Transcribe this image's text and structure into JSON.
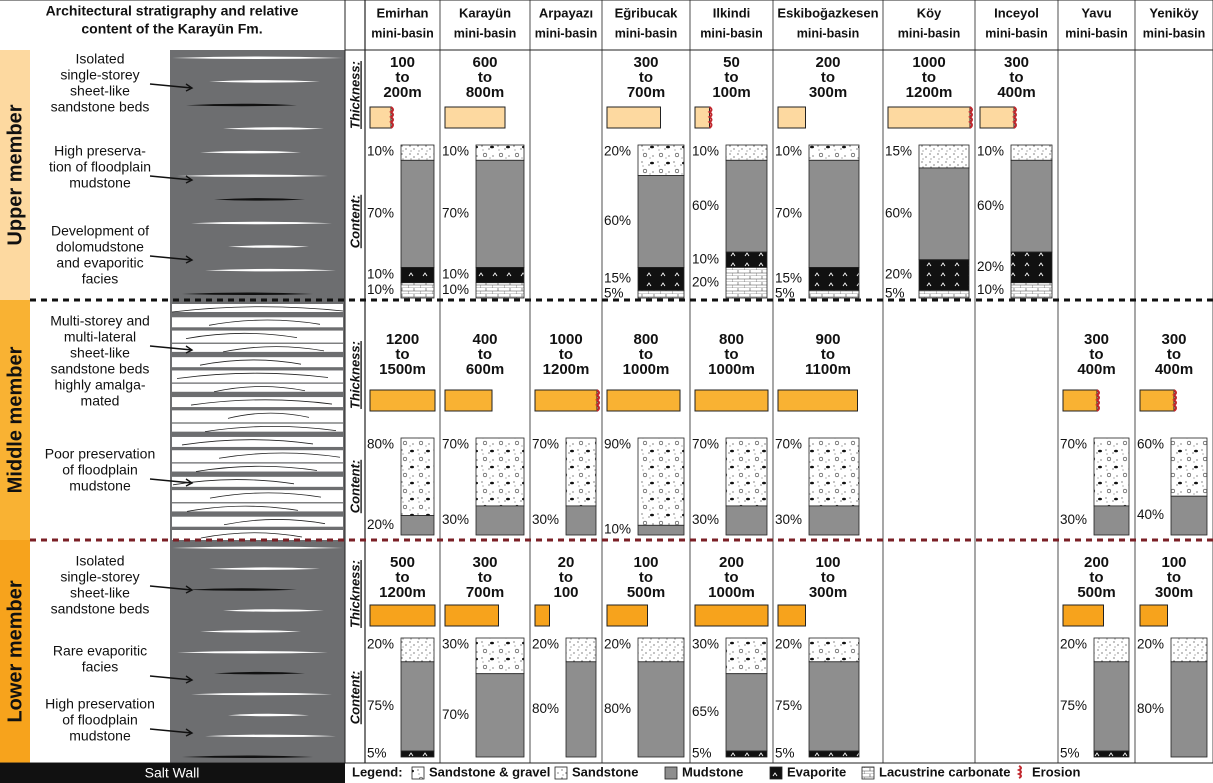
{
  "header": {
    "title": [
      "Architectural stratigraphy and relative",
      "content of the Karayün Fm."
    ],
    "basins": [
      {
        "name": "Emirhan",
        "sub": "mini-basin"
      },
      {
        "name": "Karayün",
        "sub": "mini-basin"
      },
      {
        "name": "Arpayazı",
        "sub": "mini-basin"
      },
      {
        "name": "Eğribucak",
        "sub": "mini-basin"
      },
      {
        "name": "Ilkindi",
        "sub": "mini-basin"
      },
      {
        "name": "Eskiboğazkesen",
        "sub": "mini-basin"
      },
      {
        "name": "Köy",
        "sub": "mini-basin"
      },
      {
        "name": "Inceyol",
        "sub": "mini-basin"
      },
      {
        "name": "Yavu",
        "sub": "mini-basin"
      },
      {
        "name": "Yeniköy",
        "sub": "mini-basin"
      }
    ]
  },
  "members": [
    {
      "name": "Upper member",
      "color": "#fdd9a0",
      "thickness_label": "Thickness:",
      "content_label": "Content:",
      "notes": [
        [
          "Isolated",
          "single-storey",
          "sheet-like",
          "sandstone beds"
        ],
        [
          "High preserva-",
          "tion of floodplain",
          "mudstone"
        ],
        [
          "Development of",
          "dolomudstone",
          "and evaporitic",
          "facies"
        ]
      ],
      "cells": [
        {
          "thickness": [
            "100",
            "to",
            "200m"
          ],
          "erosion": true,
          "content": [
            {
              "kind": "sandstone",
              "value": 10,
              "label": "10%"
            },
            {
              "kind": "mudstone",
              "value": 70,
              "label": "70%"
            },
            {
              "kind": "evaporite",
              "value": 10,
              "label": "10%"
            },
            {
              "kind": "carbonate",
              "value": 10,
              "label": "10%"
            }
          ]
        },
        {
          "thickness": [
            "600",
            "to",
            "800m"
          ],
          "erosion": false,
          "content": [
            {
              "kind": "gravel",
              "value": 10,
              "label": "10%"
            },
            {
              "kind": "mudstone",
              "value": 70,
              "label": "70%"
            },
            {
              "kind": "evaporite",
              "value": 10,
              "label": "10%"
            },
            {
              "kind": "carbonate",
              "value": 10,
              "label": "10%"
            }
          ]
        },
        null,
        {
          "thickness": [
            "300",
            "to",
            "700m"
          ],
          "erosion": false,
          "content": [
            {
              "kind": "gravel",
              "value": 20,
              "label": "20%"
            },
            {
              "kind": "mudstone",
              "value": 60,
              "label": "60%"
            },
            {
              "kind": "evaporite",
              "value": 15,
              "label": "15%"
            },
            {
              "kind": "carbonate",
              "value": 5,
              "label": "5%"
            }
          ]
        },
        {
          "thickness": [
            "50",
            "to",
            "100m"
          ],
          "erosion": true,
          "content": [
            {
              "kind": "sandstone",
              "value": 10,
              "label": "10%"
            },
            {
              "kind": "mudstone",
              "value": 60,
              "label": "60%"
            },
            {
              "kind": "evaporite",
              "value": 10,
              "label": "10%"
            },
            {
              "kind": "carbonate",
              "value": 20,
              "label": "20%"
            }
          ]
        },
        {
          "thickness": [
            "200",
            "to",
            "300m"
          ],
          "erosion": false,
          "content": [
            {
              "kind": "gravel",
              "value": 10,
              "label": "10%"
            },
            {
              "kind": "mudstone",
              "value": 70,
              "label": "70%"
            },
            {
              "kind": "evaporite",
              "value": 15,
              "label": "15%"
            },
            {
              "kind": "carbonate",
              "value": 5,
              "label": "5%"
            }
          ]
        },
        {
          "thickness": [
            "1000",
            "to",
            "1200m"
          ],
          "erosion": true,
          "content": [
            {
              "kind": "sandstone",
              "value": 15,
              "label": "15%"
            },
            {
              "kind": "mudstone",
              "value": 60,
              "label": "60%"
            },
            {
              "kind": "evaporite",
              "value": 20,
              "label": "20%"
            },
            {
              "kind": "carbonate",
              "value": 5,
              "label": "5%"
            }
          ]
        },
        {
          "thickness": [
            "300",
            "to",
            "400m"
          ],
          "erosion": true,
          "content": [
            {
              "kind": "sandstone",
              "value": 10,
              "label": "10%"
            },
            {
              "kind": "mudstone",
              "value": 60,
              "label": "60%"
            },
            {
              "kind": "evaporite",
              "value": 20,
              "label": "20%"
            },
            {
              "kind": "carbonate",
              "value": 10,
              "label": "10%"
            }
          ]
        },
        null,
        null
      ]
    },
    {
      "name": "Middle member",
      "color": "#f9b233",
      "thickness_label": "Thickness:",
      "content_label": "Content:",
      "notes": [
        [
          "Multi-storey and",
          "multi-lateral",
          "sheet-like",
          "sandstone beds",
          "highly amalga-",
          "mated"
        ],
        [
          "Poor preservation",
          "of floodplain",
          "mudstone"
        ]
      ],
      "cells": [
        {
          "thickness": [
            "1200",
            "to",
            "1500m"
          ],
          "erosion": false,
          "content": [
            {
              "kind": "gravel",
              "value": 80,
              "label": "80%"
            },
            {
              "kind": "mudstone",
              "value": 20,
              "label": "20%"
            }
          ]
        },
        {
          "thickness": [
            "400",
            "to",
            "600m"
          ],
          "erosion": false,
          "content": [
            {
              "kind": "gravel",
              "value": 70,
              "label": "70%"
            },
            {
              "kind": "mudstone",
              "value": 30,
              "label": "30%"
            }
          ]
        },
        {
          "thickness": [
            "1000",
            "to",
            "1200m"
          ],
          "erosion": true,
          "content": [
            {
              "kind": "gravel",
              "value": 70,
              "label": "70%"
            },
            {
              "kind": "mudstone",
              "value": 30,
              "label": "30%"
            }
          ]
        },
        {
          "thickness": [
            "800",
            "to",
            "1000m"
          ],
          "erosion": false,
          "content": [
            {
              "kind": "gravel",
              "value": 90,
              "label": "90%"
            },
            {
              "kind": "mudstone",
              "value": 10,
              "label": "10%"
            }
          ]
        },
        {
          "thickness": [
            "800",
            "to",
            "1000m"
          ],
          "erosion": false,
          "content": [
            {
              "kind": "gravel",
              "value": 70,
              "label": "70%"
            },
            {
              "kind": "mudstone",
              "value": 30,
              "label": "30%"
            }
          ]
        },
        {
          "thickness": [
            "900",
            "to",
            "1100m"
          ],
          "erosion": false,
          "content": [
            {
              "kind": "gravel",
              "value": 70,
              "label": "70%"
            },
            {
              "kind": "mudstone",
              "value": 30,
              "label": "30%"
            }
          ]
        },
        null,
        null,
        {
          "thickness": [
            "300",
            "to",
            "400m"
          ],
          "erosion": true,
          "content": [
            {
              "kind": "gravel",
              "value": 70,
              "label": "70%"
            },
            {
              "kind": "mudstone",
              "value": 30,
              "label": "30%"
            }
          ]
        },
        {
          "thickness": [
            "300",
            "to",
            "400m"
          ],
          "erosion": true,
          "content": [
            {
              "kind": "gravel",
              "value": 60,
              "label": "60%"
            },
            {
              "kind": "mudstone",
              "value": 40,
              "label": "40%"
            }
          ]
        }
      ]
    },
    {
      "name": "Lower member",
      "color": "#f7a31c",
      "thickness_label": "Thickness:",
      "content_label": "Content:",
      "notes": [
        [
          "Isolated",
          "single-storey",
          "sheet-like",
          "sandstone beds"
        ],
        [
          "Rare evaporitic",
          "facies"
        ],
        [
          "High preservation",
          "of floodplain",
          "mudstone"
        ]
      ],
      "cells": [
        {
          "thickness": [
            "500",
            "to",
            "1200m"
          ],
          "erosion": false,
          "content": [
            {
              "kind": "sandstone",
              "value": 20,
              "label": "20%"
            },
            {
              "kind": "mudstone",
              "value": 75,
              "label": "75%"
            },
            {
              "kind": "evaporite",
              "value": 5,
              "label": "5%"
            }
          ]
        },
        {
          "thickness": [
            "300",
            "to",
            "700m"
          ],
          "erosion": false,
          "content": [
            {
              "kind": "gravel",
              "value": 30,
              "label": "30%"
            },
            {
              "kind": "mudstone",
              "value": 70,
              "label": "70%"
            }
          ]
        },
        {
          "thickness": [
            "20",
            "to",
            "100"
          ],
          "erosion": false,
          "content": [
            {
              "kind": "sandstone",
              "value": 20,
              "label": "20%"
            },
            {
              "kind": "mudstone",
              "value": 80,
              "label": "80%"
            }
          ]
        },
        {
          "thickness": [
            "100",
            "to",
            "500m"
          ],
          "erosion": false,
          "content": [
            {
              "kind": "sandstone",
              "value": 20,
              "label": "20%"
            },
            {
              "kind": "mudstone",
              "value": 80,
              "label": "80%"
            }
          ]
        },
        {
          "thickness": [
            "200",
            "to",
            "1000m"
          ],
          "erosion": false,
          "content": [
            {
              "kind": "gravel",
              "value": 30,
              "label": "30%"
            },
            {
              "kind": "mudstone",
              "value": 65,
              "label": "65%"
            },
            {
              "kind": "evaporite",
              "value": 5,
              "label": "5%"
            }
          ]
        },
        {
          "thickness": [
            "100",
            "to",
            "300m"
          ],
          "erosion": false,
          "content": [
            {
              "kind": "gravel",
              "value": 20,
              "label": "20%"
            },
            {
              "kind": "mudstone",
              "value": 75,
              "label": "75%"
            },
            {
              "kind": "evaporite",
              "value": 5,
              "label": "5%"
            }
          ]
        },
        null,
        null,
        {
          "thickness": [
            "200",
            "to",
            "500m"
          ],
          "erosion": false,
          "content": [
            {
              "kind": "sandstone",
              "value": 20,
              "label": "20%"
            },
            {
              "kind": "mudstone",
              "value": 75,
              "label": "75%"
            },
            {
              "kind": "evaporite",
              "value": 5,
              "label": "5%"
            }
          ]
        },
        {
          "thickness": [
            "100",
            "to",
            "300m"
          ],
          "erosion": false,
          "content": [
            {
              "kind": "sandstone",
              "value": 20,
              "label": "20%"
            },
            {
              "kind": "mudstone",
              "value": 80,
              "label": "80%"
            }
          ]
        }
      ]
    }
  ],
  "salt_wall": "Salt Wall",
  "legend": {
    "title": "Legend:",
    "items": [
      {
        "kind": "gravel",
        "label": "Sandstone & gravel"
      },
      {
        "kind": "sandstone",
        "label": "Sandstone"
      },
      {
        "kind": "mudstone",
        "label": "Mudstone"
      },
      {
        "kind": "evaporite",
        "label": "Evaporite"
      },
      {
        "kind": "carbonate",
        "label": "Lacustrine carbonate"
      },
      {
        "kind": "erosion",
        "label": "Erosion"
      }
    ]
  }
}
